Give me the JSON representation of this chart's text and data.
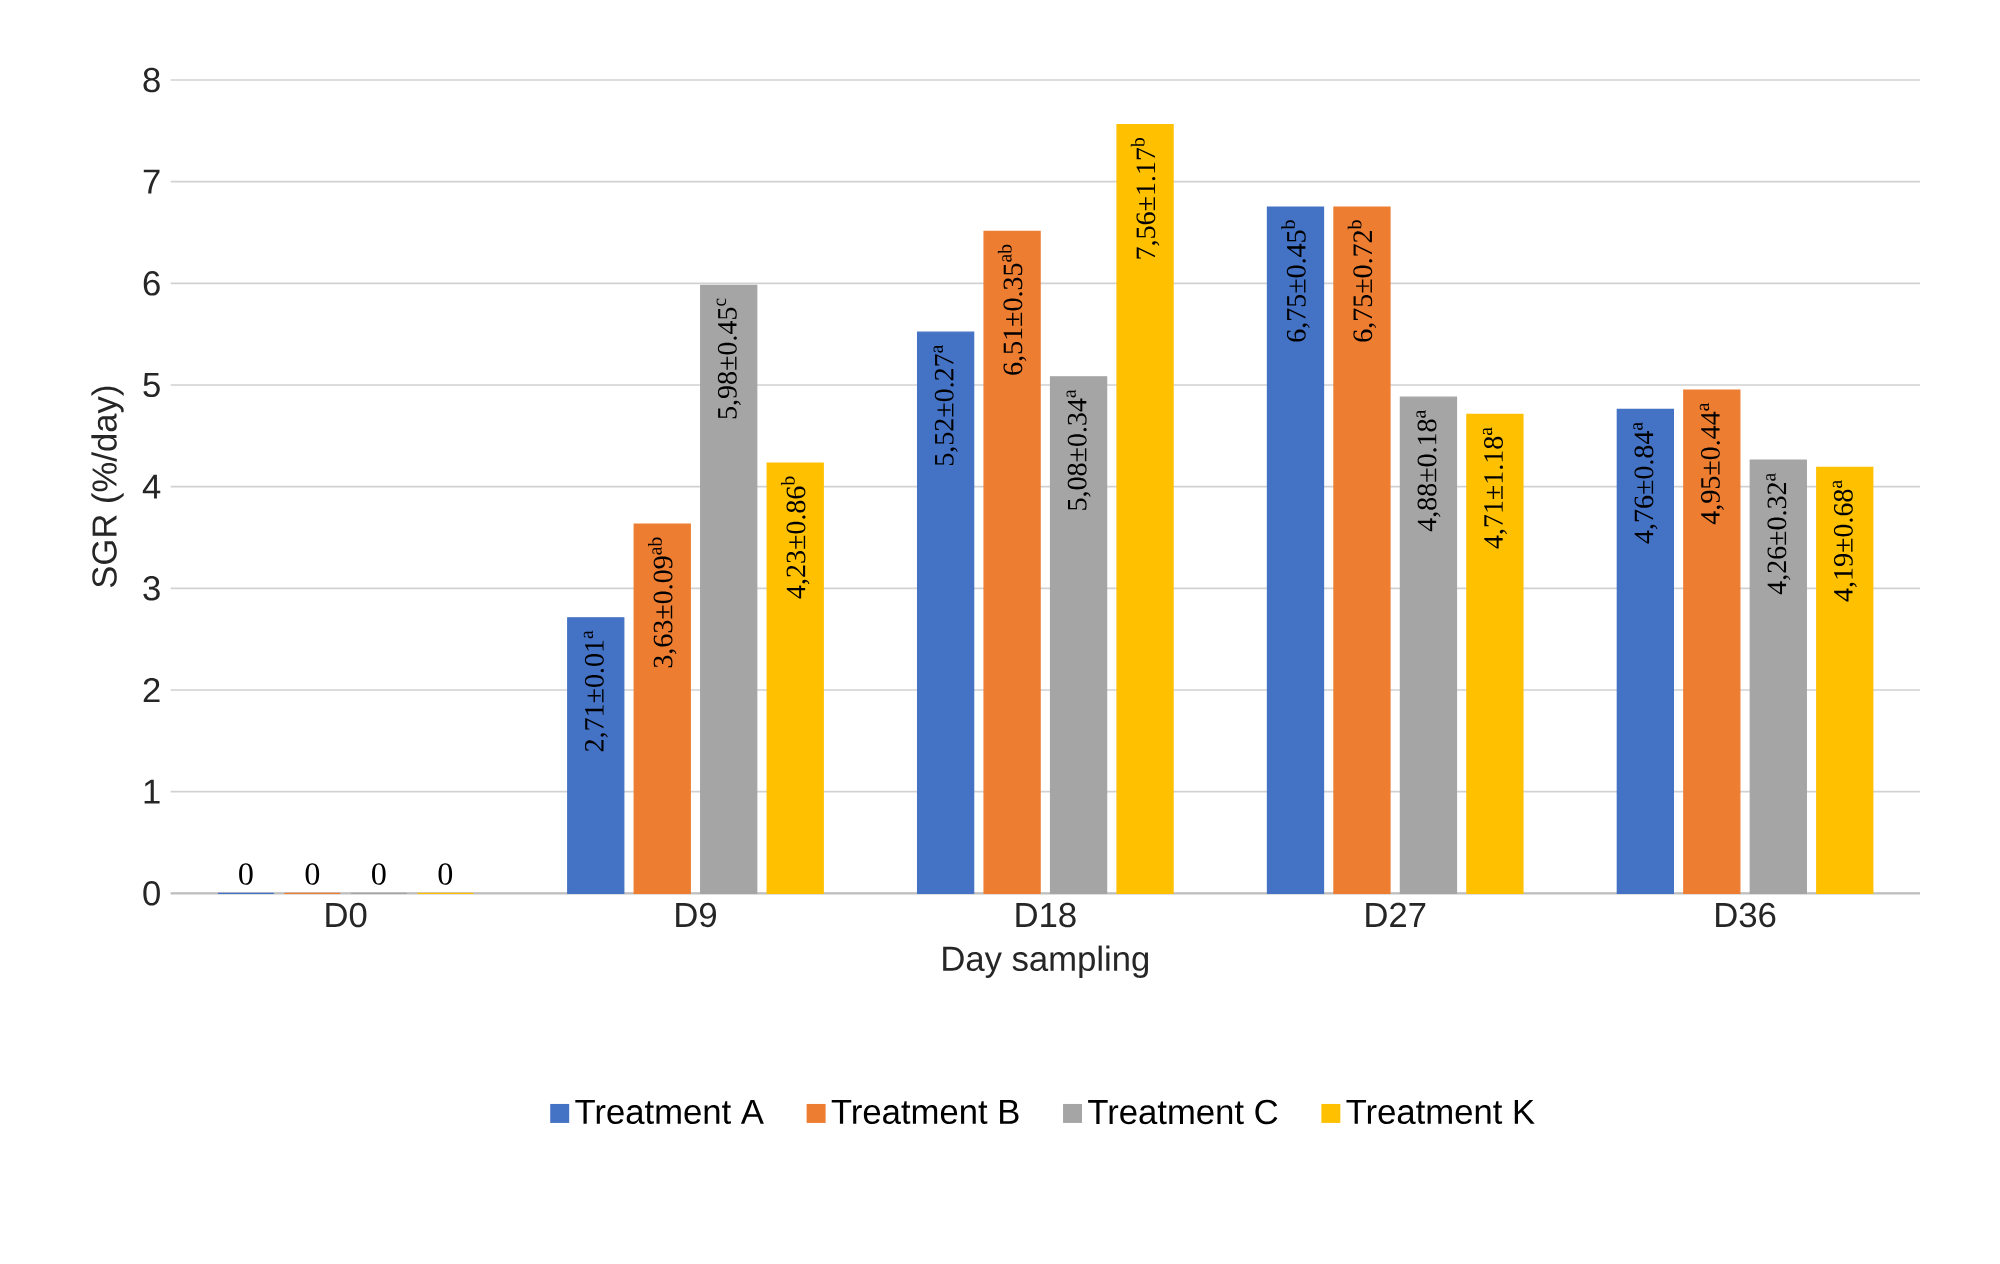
{
  "chart_data": {
    "type": "bar",
    "xlabel": "Day sampling",
    "ylabel": "SGR (%/day)",
    "categories": [
      "D0",
      "D9",
      "D18",
      "D27",
      "D36"
    ],
    "ylim": [
      0,
      8
    ],
    "yticks": [
      0,
      1,
      2,
      3,
      4,
      5,
      6,
      7,
      8
    ],
    "grid": "y",
    "legend": "bottom",
    "series": [
      {
        "name": "Treatment A",
        "color": "#4472c4",
        "values": [
          0,
          2.71,
          5.52,
          6.75,
          4.76
        ],
        "value_labels": [
          "0",
          "2,71±0.01$^{a}$",
          "5,52±0.27$^{a}$",
          "6,75±0.45$^{b}$",
          "4,76±0.84$^{a}$"
        ]
      },
      {
        "name": "Treatment B",
        "color": "#ed7d31",
        "values": [
          0,
          3.63,
          6.51,
          6.75,
          4.95
        ],
        "value_labels": [
          "0",
          "3,63±0.09$^{ab}$",
          "6,51±0.35$^{ab}$",
          "6,75±0.72$^{b}$",
          "4,95±0.44$^{a}$"
        ]
      },
      {
        "name": "Treatment C",
        "color": "#a5a5a5",
        "values": [
          0,
          5.98,
          5.08,
          4.88,
          4.26
        ],
        "value_labels": [
          "0",
          "5,98±0.45$^{c}$",
          "5,08±0.34$^{a}$",
          "4,88±0.18$^{a}$",
          "4,26±0.32$^{a}$"
        ]
      },
      {
        "name": "Treatment K",
        "color": "#ffc000",
        "values": [
          0,
          4.23,
          7.56,
          4.71,
          4.19
        ],
        "value_labels": [
          "0",
          "4,23±0.86$^{b}$",
          "7,56±1.17$^{b}$",
          "4,71±1.18$^{a}$",
          "4,19±0.68$^{a}$"
        ]
      }
    ]
  }
}
